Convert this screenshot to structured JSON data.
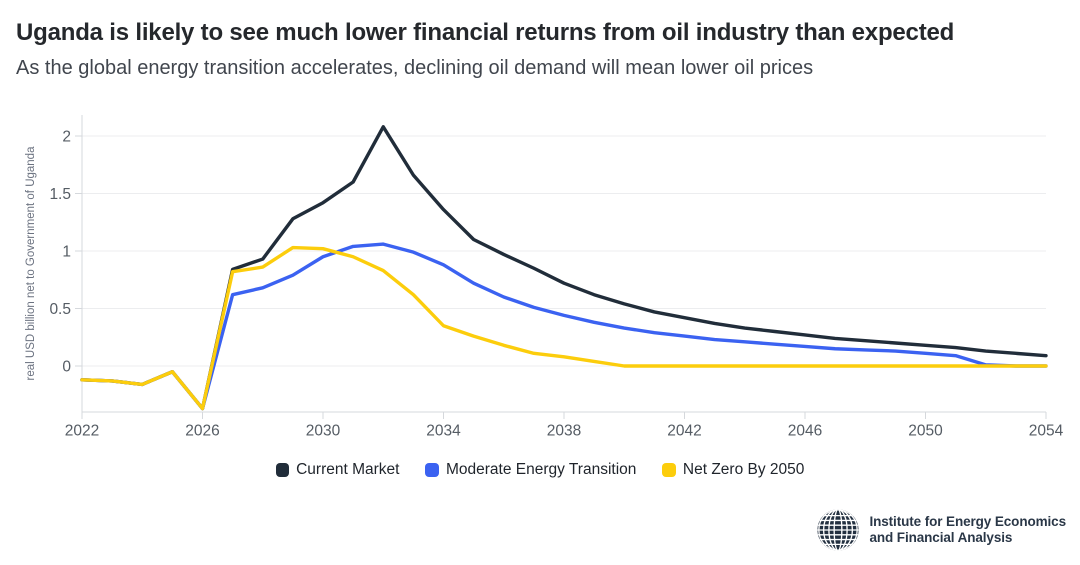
{
  "chart_data": {
    "type": "line",
    "title": "Uganda is likely to see much lower financial returns from oil industry than expected",
    "subtitle": "As the global energy transition accelerates, declining oil demand will mean lower oil prices",
    "xlabel": "",
    "ylabel": "real USD billion net to Government of Uganda",
    "ylim": [
      -0.4,
      2.18
    ],
    "y_ticks": [
      0,
      0.5,
      1,
      1.5,
      2
    ],
    "x_ticks": [
      2022,
      2026,
      2030,
      2034,
      2038,
      2042,
      2046,
      2050,
      2054
    ],
    "grid": "horizontal",
    "legend_position": "bottom",
    "x": [
      2022,
      2023,
      2024,
      2025,
      2026,
      2027,
      2028,
      2029,
      2030,
      2031,
      2032,
      2033,
      2034,
      2035,
      2036,
      2037,
      2038,
      2039,
      2040,
      2041,
      2042,
      2043,
      2044,
      2045,
      2046,
      2047,
      2048,
      2049,
      2050,
      2051,
      2052,
      2053,
      2054
    ],
    "series": [
      {
        "name": "Current Market",
        "color": "#212d3a",
        "values": [
          -0.12,
          -0.13,
          -0.16,
          -0.05,
          -0.37,
          0.84,
          0.93,
          1.28,
          1.42,
          1.6,
          2.08,
          1.66,
          1.36,
          1.1,
          0.97,
          0.85,
          0.72,
          0.62,
          0.54,
          0.47,
          0.42,
          0.37,
          0.33,
          0.3,
          0.27,
          0.24,
          0.22,
          0.2,
          0.18,
          0.16,
          0.13,
          0.11,
          0.09
        ]
      },
      {
        "name": "Moderate Energy Transition",
        "color": "#3b62f1",
        "values": [
          -0.12,
          -0.13,
          -0.16,
          -0.05,
          -0.37,
          0.62,
          0.68,
          0.79,
          0.95,
          1.04,
          1.06,
          0.99,
          0.88,
          0.72,
          0.6,
          0.51,
          0.44,
          0.38,
          0.33,
          0.29,
          0.26,
          0.23,
          0.21,
          0.19,
          0.17,
          0.15,
          0.14,
          0.13,
          0.11,
          0.09,
          0.01,
          0.0,
          0.0
        ]
      },
      {
        "name": "Net Zero By 2050",
        "color": "#fccd0c",
        "values": [
          -0.12,
          -0.13,
          -0.16,
          -0.05,
          -0.37,
          0.82,
          0.86,
          1.03,
          1.02,
          0.95,
          0.83,
          0.62,
          0.35,
          0.26,
          0.18,
          0.11,
          0.08,
          0.04,
          0.0,
          0.0,
          0.0,
          0.0,
          0.0,
          0.0,
          0.0,
          0.0,
          0.0,
          0.0,
          0.0,
          0.0,
          0.0,
          0.0,
          0.0
        ]
      }
    ]
  },
  "colors": {
    "background": "#ffffff",
    "grid": "#ecedef",
    "axis": "#d5d8dc",
    "tick_text": "#555c64",
    "axis_title_text": "#6b7280",
    "title_text": "#25282c",
    "subtitle_text": "#41464e",
    "legend_text": "#1f242b",
    "logo": "#2a3747"
  },
  "footer": {
    "org_line1": "Institute for Energy Economics",
    "org_line2": "and Financial Analysis"
  }
}
